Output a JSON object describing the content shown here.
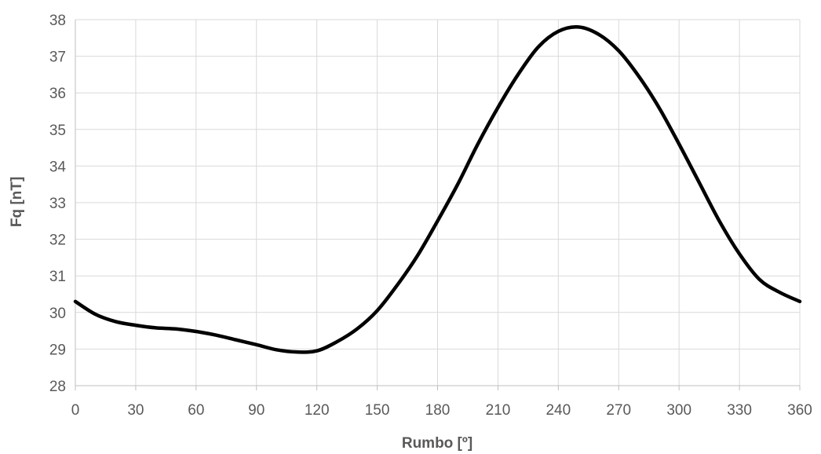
{
  "chart_data": {
    "type": "line",
    "title": "",
    "xlabel": "Rumbo [º]",
    "ylabel": "Fq [nT]",
    "xlim": [
      0,
      360
    ],
    "ylim": [
      28,
      38
    ],
    "x_ticks": [
      0,
      30,
      60,
      90,
      120,
      150,
      180,
      210,
      240,
      270,
      300,
      330,
      360
    ],
    "y_ticks": [
      28,
      29,
      30,
      31,
      32,
      33,
      34,
      35,
      36,
      37,
      38
    ],
    "grid": true,
    "legend": "none",
    "series": [
      {
        "color": "#000000",
        "x": [
          0,
          10,
          20,
          30,
          40,
          50,
          60,
          70,
          80,
          90,
          100,
          110,
          120,
          130,
          140,
          150,
          160,
          170,
          180,
          190,
          200,
          210,
          220,
          230,
          240,
          250,
          260,
          270,
          280,
          290,
          300,
          310,
          320,
          330,
          340,
          350,
          360
        ],
        "y": [
          30.3,
          29.95,
          29.75,
          29.65,
          29.58,
          29.55,
          29.48,
          29.38,
          29.25,
          29.12,
          28.98,
          28.92,
          28.95,
          29.2,
          29.55,
          30.05,
          30.75,
          31.55,
          32.5,
          33.5,
          34.6,
          35.6,
          36.5,
          37.25,
          37.68,
          37.8,
          37.6,
          37.15,
          36.45,
          35.6,
          34.6,
          33.55,
          32.5,
          31.6,
          30.9,
          30.55,
          30.3
        ]
      }
    ]
  }
}
